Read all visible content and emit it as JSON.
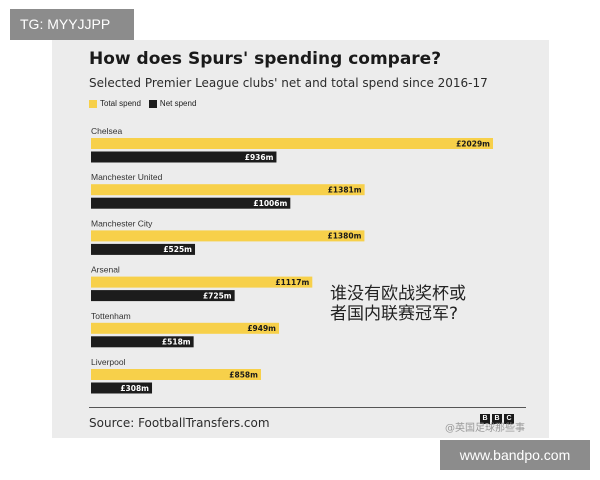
{
  "watermark_tag": "TG: MYYJJPP",
  "watermark_url": "www.bandpo.com",
  "weibo_watermark": "@英国足球那些事",
  "overlay_text": [
    "谁没有欧战奖杯或",
    "者国内联赛冠军?"
  ],
  "source": "Source: FootballTransfers.com",
  "logo_letters": [
    "B",
    "B",
    "C"
  ],
  "colors": {
    "total": "#f7d04a",
    "net": "#1c1c1c",
    "card": "#ececec"
  },
  "chart_data": {
    "type": "bar",
    "orientation": "horizontal",
    "title": "How does Spurs' spending compare?",
    "subtitle": "Selected Premier League clubs' net and total spend since 2016-17",
    "xlabel": "",
    "ylabel": "",
    "xlim": [
      0,
      2029
    ],
    "grid": false,
    "legend_position": "top-left",
    "categories": [
      "Chelsea",
      "Manchester United",
      "Manchester City",
      "Arsenal",
      "Tottenham",
      "Liverpool"
    ],
    "series": [
      {
        "name": "Total spend",
        "values": [
          2029,
          1381,
          1380,
          1117,
          949,
          858
        ],
        "labels": [
          "£2029m",
          "£1381m",
          "£1380m",
          "£1117m",
          "£949m",
          "£858m"
        ]
      },
      {
        "name": "Net spend",
        "values": [
          936,
          1006,
          525,
          725,
          518,
          308
        ],
        "labels": [
          "£936m",
          "£1006m",
          "£525m",
          "£725m",
          "£518m",
          "£308m"
        ]
      }
    ]
  }
}
